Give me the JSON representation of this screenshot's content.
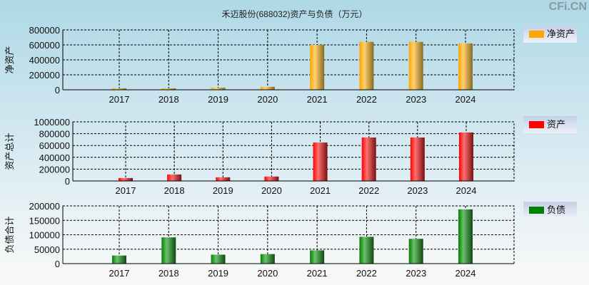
{
  "title": "禾迈股份(688032)资产与负债（万元）",
  "watermark": "CFi.CN",
  "chart_data": [
    {
      "type": "bar",
      "ylabel": "净资产",
      "legend": "净资产",
      "color": "#ffa500",
      "categories": [
        "2017",
        "2018",
        "2019",
        "2020",
        "2021",
        "2022",
        "2023",
        "2024"
      ],
      "values": [
        20000,
        19000,
        28000,
        40000,
        600000,
        640000,
        640000,
        620000
      ],
      "ylim": [
        0,
        800000
      ],
      "yticks": [
        "0",
        "200000",
        "400000",
        "600000",
        "800000"
      ],
      "grid": true,
      "legend_position": "right"
    },
    {
      "type": "bar",
      "ylabel": "资产总计",
      "legend": "资产",
      "color": "#ff0000",
      "categories": [
        "2017",
        "2018",
        "2019",
        "2020",
        "2021",
        "2022",
        "2023",
        "2024"
      ],
      "values": [
        50000,
        110000,
        62000,
        75000,
        650000,
        735000,
        735000,
        820000
      ],
      "ylim": [
        0,
        1000000
      ],
      "yticks": [
        "0",
        "200000",
        "400000",
        "600000",
        "800000",
        "1000000"
      ],
      "grid": true,
      "legend_position": "right"
    },
    {
      "type": "bar",
      "ylabel": "负债合计",
      "legend": "负债",
      "color": "#008000",
      "categories": [
        "2017",
        "2018",
        "2019",
        "2020",
        "2021",
        "2022",
        "2023",
        "2024"
      ],
      "values": [
        28000,
        91000,
        31000,
        33000,
        46000,
        93000,
        86000,
        188000
      ],
      "ylim": [
        0,
        200000
      ],
      "yticks": [
        "0",
        "50000",
        "100000",
        "150000",
        "200000"
      ],
      "grid": true,
      "legend_position": "right"
    }
  ]
}
